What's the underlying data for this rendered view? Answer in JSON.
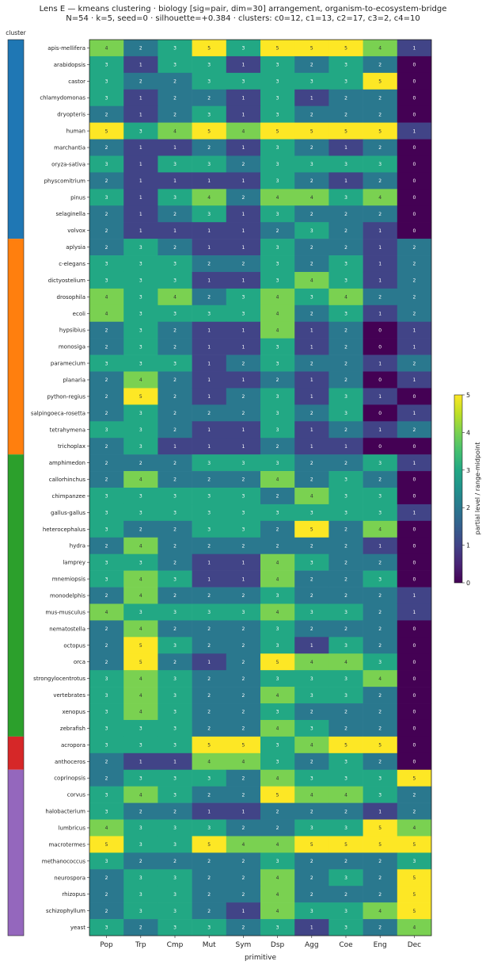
{
  "chart_data": {
    "type": "heatmap",
    "title": "Lens E — kmeans clustering · biology [sig=pair, dim=30] arrangement, organism-to-ecosystem-bridge",
    "subtitle": "N=54 · k=5, seed=0 · silhouette=+0.384 · clusters: c0=12, c1=13, c2=17, c3=2, c4=10",
    "cluster_bar_label": "cluster",
    "xlabel": "primitive",
    "colorbar_label": "partial level / range-midpoint",
    "colorbar_ticks": [
      "0",
      "1",
      "2",
      "3",
      "4",
      "5"
    ],
    "zlim": [
      0,
      5
    ],
    "columns": [
      "Pop",
      "Trp",
      "Cmp",
      "Mut",
      "Sym",
      "Dsp",
      "Agg",
      "Coe",
      "Eng",
      "Dec"
    ],
    "cluster_colors": {
      "c0": "#1f77b4",
      "c1": "#ff7f0e",
      "c2": "#2ca02c",
      "c3": "#d62728",
      "c4": "#9467bd"
    },
    "rows": [
      {
        "label": "apis-mellifera",
        "cluster": "c0",
        "values": [
          4,
          2,
          3,
          5,
          3,
          5,
          5,
          5,
          4,
          1
        ]
      },
      {
        "label": "arabidopsis",
        "cluster": "c0",
        "values": [
          3,
          1,
          3,
          3,
          1,
          3,
          2,
          3,
          2,
          0
        ]
      },
      {
        "label": "castor",
        "cluster": "c0",
        "values": [
          3,
          2,
          2,
          3,
          3,
          3,
          3,
          3,
          5,
          0
        ]
      },
      {
        "label": "chlamydomonas",
        "cluster": "c0",
        "values": [
          3,
          1,
          2,
          2,
          1,
          3,
          1,
          2,
          2,
          0
        ]
      },
      {
        "label": "dryopteris",
        "cluster": "c0",
        "values": [
          2,
          1,
          2,
          3,
          1,
          3,
          2,
          2,
          2,
          0
        ]
      },
      {
        "label": "human",
        "cluster": "c0",
        "values": [
          5,
          3,
          4,
          5,
          4,
          5,
          5,
          5,
          5,
          1
        ]
      },
      {
        "label": "marchantia",
        "cluster": "c0",
        "values": [
          2,
          1,
          1,
          2,
          1,
          3,
          2,
          1,
          2,
          0
        ]
      },
      {
        "label": "oryza-sativa",
        "cluster": "c0",
        "values": [
          3,
          1,
          3,
          3,
          2,
          3,
          3,
          3,
          3,
          0
        ]
      },
      {
        "label": "physcomitrium",
        "cluster": "c0",
        "values": [
          2,
          1,
          1,
          1,
          1,
          3,
          2,
          1,
          2,
          0
        ]
      },
      {
        "label": "pinus",
        "cluster": "c0",
        "values": [
          3,
          1,
          3,
          4,
          2,
          4,
          4,
          3,
          4,
          0
        ]
      },
      {
        "label": "selaginella",
        "cluster": "c0",
        "values": [
          2,
          1,
          2,
          3,
          1,
          3,
          2,
          2,
          2,
          0
        ]
      },
      {
        "label": "volvox",
        "cluster": "c0",
        "values": [
          2,
          1,
          1,
          1,
          1,
          2,
          3,
          2,
          1,
          0
        ]
      },
      {
        "label": "aplysia",
        "cluster": "c1",
        "values": [
          2,
          3,
          2,
          1,
          1,
          3,
          2,
          2,
          1,
          2
        ]
      },
      {
        "label": "c-elegans",
        "cluster": "c1",
        "values": [
          3,
          3,
          3,
          2,
          2,
          3,
          2,
          3,
          1,
          2
        ]
      },
      {
        "label": "dictyostelium",
        "cluster": "c1",
        "values": [
          3,
          3,
          3,
          1,
          1,
          3,
          4,
          3,
          1,
          2
        ]
      },
      {
        "label": "drosophila",
        "cluster": "c1",
        "values": [
          4,
          3,
          4,
          2,
          3,
          4,
          3,
          4,
          2,
          2
        ]
      },
      {
        "label": "ecoli",
        "cluster": "c1",
        "values": [
          4,
          3,
          3,
          3,
          3,
          4,
          2,
          3,
          1,
          2
        ]
      },
      {
        "label": "hypsibius",
        "cluster": "c1",
        "values": [
          2,
          3,
          2,
          1,
          1,
          4,
          1,
          2,
          0,
          1
        ]
      },
      {
        "label": "monosiga",
        "cluster": "c1",
        "values": [
          2,
          3,
          2,
          1,
          1,
          3,
          1,
          2,
          0,
          1
        ]
      },
      {
        "label": "paramecium",
        "cluster": "c1",
        "values": [
          3,
          3,
          3,
          1,
          2,
          3,
          2,
          2,
          1,
          2
        ]
      },
      {
        "label": "planaria",
        "cluster": "c1",
        "values": [
          2,
          4,
          2,
          1,
          1,
          2,
          1,
          2,
          0,
          1
        ]
      },
      {
        "label": "python-regius",
        "cluster": "c1",
        "values": [
          2,
          5,
          2,
          1,
          2,
          3,
          1,
          3,
          1,
          0
        ]
      },
      {
        "label": "salpingoeca-rosetta",
        "cluster": "c1",
        "values": [
          2,
          3,
          2,
          2,
          2,
          3,
          2,
          3,
          0,
          1
        ]
      },
      {
        "label": "tetrahymena",
        "cluster": "c1",
        "values": [
          3,
          3,
          2,
          1,
          1,
          3,
          1,
          2,
          1,
          2
        ]
      },
      {
        "label": "trichoplax",
        "cluster": "c1",
        "values": [
          2,
          3,
          1,
          1,
          1,
          2,
          1,
          1,
          0,
          0
        ]
      },
      {
        "label": "amphimedon",
        "cluster": "c2",
        "values": [
          2,
          2,
          2,
          3,
          3,
          3,
          2,
          2,
          3,
          1
        ]
      },
      {
        "label": "callorhinchus",
        "cluster": "c2",
        "values": [
          2,
          4,
          2,
          2,
          2,
          4,
          2,
          3,
          2,
          0
        ]
      },
      {
        "label": "chimpanzee",
        "cluster": "c2",
        "values": [
          3,
          3,
          3,
          3,
          3,
          2,
          4,
          3,
          3,
          0
        ]
      },
      {
        "label": "gallus-gallus",
        "cluster": "c2",
        "values": [
          3,
          3,
          3,
          3,
          3,
          3,
          3,
          3,
          3,
          1
        ]
      },
      {
        "label": "heterocephalus",
        "cluster": "c2",
        "values": [
          3,
          2,
          2,
          3,
          3,
          2,
          5,
          2,
          4,
          0
        ]
      },
      {
        "label": "hydra",
        "cluster": "c2",
        "values": [
          2,
          4,
          2,
          2,
          2,
          2,
          2,
          2,
          1,
          0
        ]
      },
      {
        "label": "lamprey",
        "cluster": "c2",
        "values": [
          3,
          3,
          2,
          1,
          1,
          4,
          3,
          2,
          2,
          0
        ]
      },
      {
        "label": "mnemiopsis",
        "cluster": "c2",
        "values": [
          3,
          4,
          3,
          1,
          1,
          4,
          2,
          2,
          3,
          0
        ]
      },
      {
        "label": "monodelphis",
        "cluster": "c2",
        "values": [
          2,
          4,
          2,
          2,
          2,
          3,
          2,
          2,
          2,
          1
        ]
      },
      {
        "label": "mus-musculus",
        "cluster": "c2",
        "values": [
          4,
          3,
          3,
          3,
          3,
          4,
          3,
          3,
          2,
          1
        ]
      },
      {
        "label": "nematostella",
        "cluster": "c2",
        "values": [
          2,
          4,
          2,
          2,
          2,
          3,
          2,
          2,
          2,
          0
        ]
      },
      {
        "label": "octopus",
        "cluster": "c2",
        "values": [
          2,
          5,
          3,
          2,
          2,
          3,
          1,
          3,
          2,
          0
        ]
      },
      {
        "label": "orca",
        "cluster": "c2",
        "values": [
          2,
          5,
          2,
          1,
          2,
          5,
          4,
          4,
          3,
          0
        ]
      },
      {
        "label": "strongylocentrotus",
        "cluster": "c2",
        "values": [
          3,
          4,
          3,
          2,
          2,
          3,
          3,
          3,
          4,
          0
        ]
      },
      {
        "label": "vertebrates",
        "cluster": "c2",
        "values": [
          3,
          4,
          3,
          2,
          2,
          4,
          3,
          3,
          2,
          0
        ]
      },
      {
        "label": "xenopus",
        "cluster": "c2",
        "values": [
          3,
          4,
          3,
          2,
          2,
          3,
          2,
          2,
          2,
          0
        ]
      },
      {
        "label": "zebrafish",
        "cluster": "c2",
        "values": [
          3,
          3,
          3,
          2,
          2,
          4,
          3,
          2,
          2,
          0
        ]
      },
      {
        "label": "acropora",
        "cluster": "c3",
        "values": [
          3,
          3,
          3,
          5,
          5,
          3,
          4,
          5,
          5,
          0
        ]
      },
      {
        "label": "anthoceros",
        "cluster": "c3",
        "values": [
          2,
          1,
          1,
          4,
          4,
          3,
          2,
          3,
          2,
          0
        ]
      },
      {
        "label": "coprinopsis",
        "cluster": "c4",
        "values": [
          2,
          3,
          3,
          3,
          2,
          4,
          3,
          3,
          3,
          5
        ]
      },
      {
        "label": "corvus",
        "cluster": "c4",
        "values": [
          3,
          4,
          3,
          2,
          2,
          5,
          4,
          4,
          3,
          2
        ]
      },
      {
        "label": "halobacterium",
        "cluster": "c4",
        "values": [
          3,
          2,
          2,
          1,
          1,
          2,
          2,
          2,
          1,
          2
        ]
      },
      {
        "label": "lumbricus",
        "cluster": "c4",
        "values": [
          4,
          3,
          3,
          3,
          2,
          2,
          3,
          3,
          5,
          4
        ]
      },
      {
        "label": "macrotermes",
        "cluster": "c4",
        "values": [
          5,
          3,
          3,
          5,
          4,
          4,
          5,
          5,
          5,
          5
        ]
      },
      {
        "label": "methanococcus",
        "cluster": "c4",
        "values": [
          3,
          2,
          2,
          2,
          2,
          3,
          2,
          2,
          2,
          3
        ]
      },
      {
        "label": "neurospora",
        "cluster": "c4",
        "values": [
          2,
          3,
          3,
          2,
          2,
          4,
          2,
          3,
          2,
          5
        ]
      },
      {
        "label": "rhizopus",
        "cluster": "c4",
        "values": [
          2,
          3,
          3,
          2,
          2,
          4,
          2,
          2,
          2,
          5
        ]
      },
      {
        "label": "schizophyllum",
        "cluster": "c4",
        "values": [
          2,
          3,
          3,
          2,
          1,
          4,
          3,
          3,
          4,
          5
        ]
      },
      {
        "label": "yeast",
        "cluster": "c4",
        "values": [
          3,
          2,
          3,
          3,
          2,
          3,
          1,
          3,
          2,
          4
        ]
      }
    ]
  }
}
